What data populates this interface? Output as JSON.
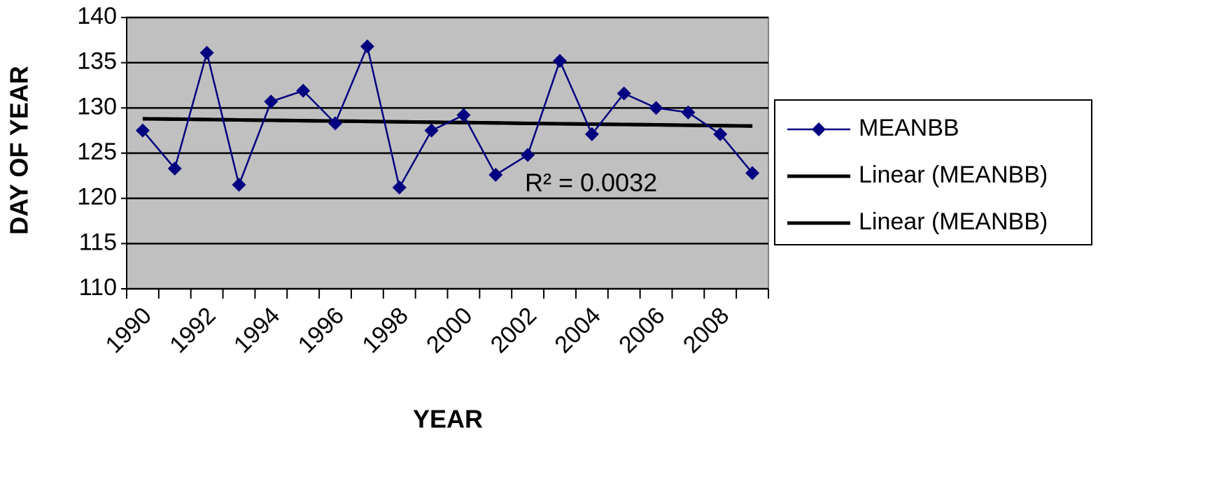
{
  "chart_data": {
    "type": "line",
    "x_label": "YEAR",
    "y_label": "DAY OF YEAR",
    "annotation": "R² = 0.0032",
    "categories": [
      "1990",
      null,
      "1992",
      null,
      "1994",
      null,
      "1996",
      null,
      "1998",
      null,
      "2000",
      null,
      "2002",
      null,
      "2004",
      null,
      "2006",
      null,
      "2008",
      null
    ],
    "series": [
      {
        "name": "MEANBB",
        "color": "#000080",
        "marker": "diamond",
        "values": [
          127.5,
          123.3,
          136.1,
          121.5,
          130.7,
          131.9,
          128.3,
          136.8,
          121.2,
          127.5,
          129.2,
          122.6,
          124.8,
          135.2,
          127.1,
          131.6,
          130.0,
          129.5,
          127.1,
          122.8
        ]
      },
      {
        "name": "Linear (MEANBB)",
        "color": "#000000",
        "marker": "none",
        "values": [
          128.8,
          128.76,
          128.72,
          128.67,
          128.63,
          128.59,
          128.55,
          128.51,
          128.46,
          128.42,
          128.38,
          128.34,
          128.29,
          128.25,
          128.21,
          128.17,
          128.13,
          128.08,
          128.04,
          128.0
        ]
      },
      {
        "name": "Linear (MEANBB)",
        "color": "#000000",
        "marker": "none",
        "values": [
          128.8,
          128.76,
          128.72,
          128.67,
          128.63,
          128.59,
          128.55,
          128.51,
          128.46,
          128.42,
          128.38,
          128.34,
          128.29,
          128.25,
          128.21,
          128.17,
          128.13,
          128.08,
          128.04,
          128.0
        ]
      }
    ],
    "ylim": [
      110,
      140
    ],
    "yticks": [
      110,
      115,
      120,
      125,
      130,
      135,
      140
    ],
    "grid": true,
    "plot_background": "#c0c0c0",
    "legend": "right"
  }
}
